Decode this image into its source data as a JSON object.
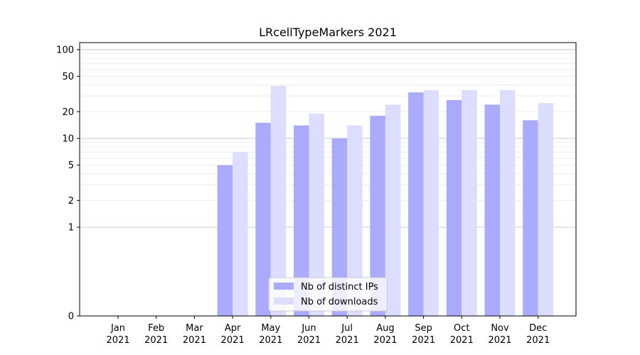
{
  "chart_data": {
    "type": "bar",
    "title": "LRcellTypeMarkers 2021",
    "xlabel": "",
    "ylabel": "",
    "y_scale": "symlog",
    "ylim": [
      0,
      120
    ],
    "yticks": [
      {
        "value": 0,
        "label": "0"
      },
      {
        "value": 1,
        "label": "1"
      },
      {
        "value": 2,
        "label": "2"
      },
      {
        "value": 5,
        "label": "5"
      },
      {
        "value": 10,
        "label": "10"
      },
      {
        "value": 20,
        "label": "20"
      },
      {
        "value": 50,
        "label": "50"
      },
      {
        "value": 100,
        "label": "100"
      }
    ],
    "categories": [
      {
        "month": "Jan",
        "year": "2021"
      },
      {
        "month": "Feb",
        "year": "2021"
      },
      {
        "month": "Mar",
        "year": "2021"
      },
      {
        "month": "Apr",
        "year": "2021"
      },
      {
        "month": "May",
        "year": "2021"
      },
      {
        "month": "Jun",
        "year": "2021"
      },
      {
        "month": "Jul",
        "year": "2021"
      },
      {
        "month": "Aug",
        "year": "2021"
      },
      {
        "month": "Sep",
        "year": "2021"
      },
      {
        "month": "Oct",
        "year": "2021"
      },
      {
        "month": "Nov",
        "year": "2021"
      },
      {
        "month": "Dec",
        "year": "2021"
      }
    ],
    "series": [
      {
        "name": "Nb of distinct IPs",
        "color": "#aaaaff",
        "values": [
          0,
          0,
          0,
          5,
          15,
          14,
          10,
          18,
          33,
          27,
          24,
          16
        ]
      },
      {
        "name": "Nb of downloads",
        "color": "#ddddff",
        "values": [
          0,
          0,
          0,
          7,
          39,
          19,
          14,
          24,
          35,
          35,
          35,
          25
        ]
      }
    ],
    "grid": {
      "major": true,
      "minor": true,
      "major_color": "#cccccc",
      "minor_color": "#eeeeee"
    },
    "legend": {
      "position": "lower-center"
    }
  }
}
